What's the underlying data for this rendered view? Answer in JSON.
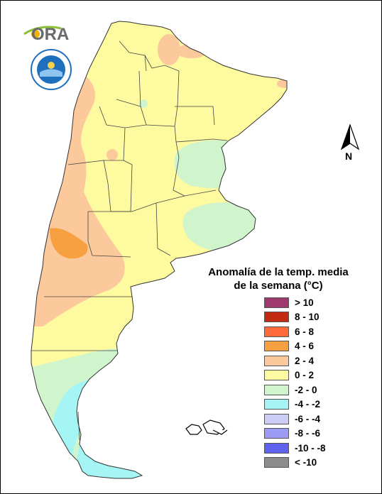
{
  "map": {
    "title_line1": "Anomalía de la temp. media",
    "title_line2": "de la semana (°C)",
    "north_label": "N",
    "legend": [
      {
        "label": "> 10",
        "color": "#9e3a6e"
      },
      {
        "label": "8 - 10",
        "color": "#c32a12"
      },
      {
        "label": "6 - 8",
        "color": "#ff6a3a"
      },
      {
        "label": "4 - 6",
        "color": "#f7a042"
      },
      {
        "label": "2 - 4",
        "color": "#fbc99b"
      },
      {
        "label": "0 - 2",
        "color": "#fefaa0"
      },
      {
        "label": "-2 - 0",
        "color": "#d0f5cc"
      },
      {
        "label": "-4 - -2",
        "color": "#a6f5f5"
      },
      {
        "label": "-6 - -4",
        "color": "#cdcdf5"
      },
      {
        "label": "-8 - -6",
        "color": "#9b9bf5"
      },
      {
        "label": "-10 - -8",
        "color": "#6161f0"
      },
      {
        "label": "< -10",
        "color": "#8c8c8c"
      }
    ]
  },
  "logos": {
    "ora_text": "ORA"
  },
  "colors": {
    "ora_green": "#8dbf3a",
    "seal_blue": "#1f6fbf"
  }
}
